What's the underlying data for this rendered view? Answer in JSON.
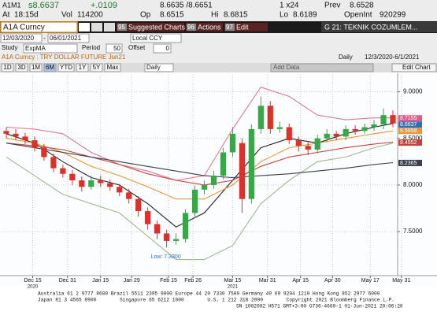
{
  "quote": {
    "ticker": "A1M1",
    "last": "s8.6637",
    "change": "+.0109",
    "bid_ask": "8.6635 /8.6651",
    "size": "1 x24",
    "prev_label": "Prev",
    "prev": "8.6528",
    "at_label": "At",
    "time": "18:15d",
    "vol_label": "Vol",
    "vol": "114200",
    "open_label": "Op",
    "open": "8.6515",
    "hi_label": "Hi",
    "hi": "8.6815",
    "lo_label": "Lo",
    "lo": "8.6189",
    "oi_label": "OpenInt",
    "oi": "920299"
  },
  "toolbar": {
    "security": "A1A Curncy",
    "buttons": [
      {
        "num": "95",
        "label": "Suggested Charts"
      },
      {
        "num": "96",
        "label": "Actions"
      },
      {
        "num": "97",
        "label": "Edit"
      }
    ],
    "page": "G 21: TEKNIK COZUMLEM..."
  },
  "range": {
    "start": "12/03/2020",
    "sep": "-",
    "end": "06/01/2021",
    "currency": "Local CCY"
  },
  "study": {
    "label": "Study",
    "name": "ExpMA",
    "period_label": "Period",
    "period": "50",
    "offset_label": "Offset",
    "offset": "0"
  },
  "info": {
    "description": "A1A Curncy : TRY DOLLAR FUTURE Jun21",
    "frequency": "Daily",
    "dates": "12/3/2020-6/1/2021"
  },
  "tabs": [
    "1D",
    "3D",
    "1M",
    "6M",
    "YTD",
    "1Y",
    "5Y",
    "Max"
  ],
  "frequency_select": "Daily",
  "add_data": "Add Data",
  "edit_chart": "Edit Chart",
  "chart_data": {
    "type": "candlestick",
    "up_color": "#3aa64a",
    "down_color": "#d9312b",
    "open": [
      8.58,
      8.55,
      8.52,
      8.48,
      8.4,
      8.3,
      8.18,
      8.12,
      8.05,
      7.98,
      8.05,
      8.02,
      7.98,
      7.92,
      7.85,
      7.72,
      7.58,
      7.48,
      7.4,
      7.42,
      7.7,
      7.95,
      8.0,
      8.1,
      8.35,
      8.45,
      7.85,
      8.6,
      8.85,
      8.6,
      8.62,
      8.48,
      8.42,
      8.38,
      8.5,
      8.55,
      8.52,
      8.6,
      8.58,
      8.62,
      8.65,
      8.75
    ],
    "high": [
      8.62,
      8.6,
      8.56,
      8.52,
      8.44,
      8.34,
      8.22,
      8.16,
      8.09,
      8.1,
      8.1,
      8.06,
      8.01,
      7.96,
      7.88,
      7.76,
      7.62,
      7.52,
      7.48,
      7.74,
      7.99,
      8.05,
      8.15,
      8.4,
      8.62,
      8.5,
      8.65,
      8.95,
      8.9,
      8.68,
      8.66,
      8.52,
      8.46,
      8.54,
      8.6,
      8.58,
      8.64,
      8.64,
      8.66,
      8.7,
      8.82,
      8.8
    ],
    "low": [
      8.5,
      8.48,
      8.44,
      8.36,
      8.26,
      8.14,
      8.08,
      8.0,
      7.93,
      7.95,
      7.98,
      7.94,
      7.88,
      7.8,
      7.66,
      7.52,
      7.42,
      7.33,
      7.36,
      7.38,
      7.66,
      7.9,
      7.96,
      8.06,
      8.3,
      7.7,
      7.8,
      8.55,
      8.55,
      8.56,
      8.44,
      8.36,
      8.32,
      8.34,
      8.46,
      8.48,
      8.48,
      8.54,
      8.55,
      8.58,
      8.6,
      8.62
    ],
    "close": [
      8.55,
      8.52,
      8.48,
      8.4,
      8.3,
      8.18,
      8.12,
      8.05,
      7.98,
      8.05,
      8.02,
      7.98,
      7.92,
      7.85,
      7.72,
      7.58,
      7.48,
      7.4,
      7.42,
      7.7,
      7.95,
      8.0,
      8.1,
      8.35,
      8.55,
      7.85,
      8.6,
      8.85,
      8.6,
      8.62,
      8.48,
      8.42,
      8.38,
      8.5,
      8.55,
      8.52,
      8.6,
      8.58,
      8.62,
      8.65,
      8.75,
      8.66
    ],
    "lines": [
      {
        "color": "#e07a8c",
        "x": [
          0,
          3,
          6,
          9,
          12,
          15,
          18,
          21,
          24,
          27,
          30,
          33,
          36,
          39,
          41
        ],
        "values": [
          8.62,
          8.6,
          8.55,
          8.35,
          8.22,
          8.15,
          8.05,
          8.1,
          8.6,
          9.05,
          8.95,
          8.75,
          8.7,
          8.72,
          8.72
        ]
      },
      {
        "color": "#9db88f",
        "x": [
          0,
          3,
          6,
          9,
          12,
          15,
          18,
          21,
          24,
          27,
          30,
          33,
          36,
          39,
          41
        ],
        "values": [
          8.3,
          8.1,
          7.9,
          7.8,
          7.7,
          7.45,
          7.2,
          7.2,
          7.35,
          7.8,
          8.05,
          8.25,
          8.3,
          8.4,
          8.45
        ]
      },
      {
        "color": "#222222",
        "x": [
          0,
          3,
          6,
          9,
          12,
          15,
          18,
          21,
          24,
          27,
          30,
          33,
          36,
          39,
          41
        ],
        "values": [
          8.55,
          8.45,
          8.25,
          8.08,
          8.0,
          7.8,
          7.55,
          7.7,
          8.05,
          8.4,
          8.5,
          8.45,
          8.55,
          8.62,
          8.66
        ]
      },
      {
        "color": "#e8973a",
        "x": [
          0,
          3,
          6,
          9,
          12,
          15,
          18,
          21,
          24,
          27,
          30,
          33,
          36,
          39,
          41
        ],
        "values": [
          8.5,
          8.45,
          8.35,
          8.2,
          8.1,
          7.98,
          7.85,
          7.85,
          8.0,
          8.25,
          8.4,
          8.45,
          8.5,
          8.55,
          8.58
        ]
      },
      {
        "color": "#c8403a",
        "x": [
          0,
          3,
          6,
          9,
          12,
          15,
          18,
          21,
          24,
          27,
          30,
          33,
          36,
          39,
          41
        ],
        "values": [
          8.45,
          8.42,
          8.38,
          8.3,
          8.22,
          8.12,
          8.05,
          8.0,
          8.05,
          8.2,
          8.3,
          8.35,
          8.4,
          8.44,
          8.46
        ]
      },
      {
        "color": "#3a3f4a",
        "x": [
          0,
          3,
          6,
          9,
          12,
          15,
          18,
          21,
          24,
          27,
          30,
          33,
          36,
          39,
          41
        ],
        "values": [
          8.45,
          8.4,
          8.35,
          8.3,
          8.25,
          8.2,
          8.15,
          8.1,
          8.08,
          8.1,
          8.12,
          8.15,
          8.18,
          8.22,
          8.24
        ]
      }
    ],
    "price_tags": [
      {
        "value": 8.7155,
        "color": "#e05a8a"
      },
      {
        "value": 8.6637,
        "color": "#2f6fb8"
      },
      {
        "value": 8.5958,
        "color": "#e8973a"
      },
      {
        "value": 8.4552,
        "color": "#c8403a"
      },
      {
        "value": 8.2365,
        "color": "#3a3f4a"
      }
    ],
    "annotation": {
      "label": "Low: 7.3300",
      "x": 17,
      "value": 7.33
    },
    "xlim": [
      -0.5,
      41.5
    ],
    "xticks": [
      {
        "value": 2.8,
        "label": "Dec 15"
      },
      {
        "value": 6.5,
        "label": "Dec 31"
      },
      {
        "value": 10,
        "label": "Jan 15"
      },
      {
        "value": 13.3,
        "label": "Jan 29"
      },
      {
        "value": 17.2,
        "label": "Feb 15"
      },
      {
        "value": 19.8,
        "label": "Feb 26"
      },
      {
        "value": 24,
        "label": "Mar 15"
      },
      {
        "value": 27.7,
        "label": "Mar 31"
      },
      {
        "value": 31.2,
        "label": "Apr 15"
      },
      {
        "value": 34.6,
        "label": "Apr 30"
      },
      {
        "value": 38.6,
        "label": "May 17"
      },
      {
        "value": 41.9,
        "label": "May 31"
      }
    ],
    "year_labels": [
      {
        "value": 2.8,
        "label": "2020"
      },
      {
        "value": 24,
        "label": "2021"
      }
    ],
    "ylim": [
      7.07,
      9.14
    ],
    "yticks": [
      {
        "value": 7.5,
        "label": "7.5000"
      },
      {
        "value": 8,
        "label": "8.0000"
      },
      {
        "value": 8.5,
        "label": "8.5000"
      },
      {
        "value": 9,
        "label": "9.0000"
      }
    ],
    "grid": true
  },
  "footer": [
    "Australia 61 2 9777 8600 Brazil 5511 2395 9000 Europe 44 20 7330 7500 Germany 49 69 9204 1210 Hong Kong 852 2977 6000",
    "Japan 81 3 4565 8900        Singapore 65 6212 1000        U.S. 1 212 318 2000        Copyright 2021 Bloomberg Finance L.P.",
    "SN 1082082 H571 GMT+3:00 G736-4660-1 01-Jun-2021 20:06:20"
  ]
}
